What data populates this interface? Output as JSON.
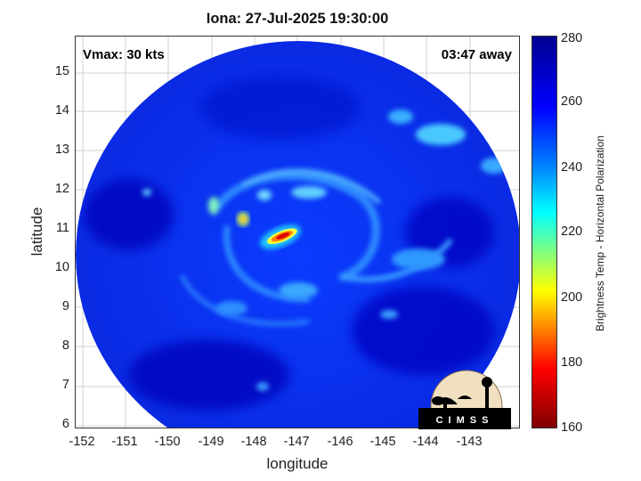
{
  "title": "Iona: 27-Jul-2025 19:30:00",
  "vmax_label": "Vmax: 30 kts",
  "time_away_label": "03:47 away",
  "x_axis": {
    "label": "longitude",
    "ticks": [
      "-152",
      "-151",
      "-150",
      "-149",
      "-148",
      "-147",
      "-146",
      "-145",
      "-144",
      "-143"
    ]
  },
  "y_axis": {
    "label": "latitude",
    "ticks": [
      "15",
      "14",
      "13",
      "12",
      "11",
      "10",
      "9",
      "8",
      "7",
      "6"
    ]
  },
  "colorbar": {
    "label": "Brightness Temp - Horizontal Polarization",
    "ticks": [
      "280",
      "260",
      "240",
      "220",
      "200",
      "180",
      "160"
    ],
    "colors": {
      "low": "#800000",
      "mid": "#ffff00",
      "high": "#00008f"
    }
  },
  "logo": {
    "text": "CIMSS"
  }
}
